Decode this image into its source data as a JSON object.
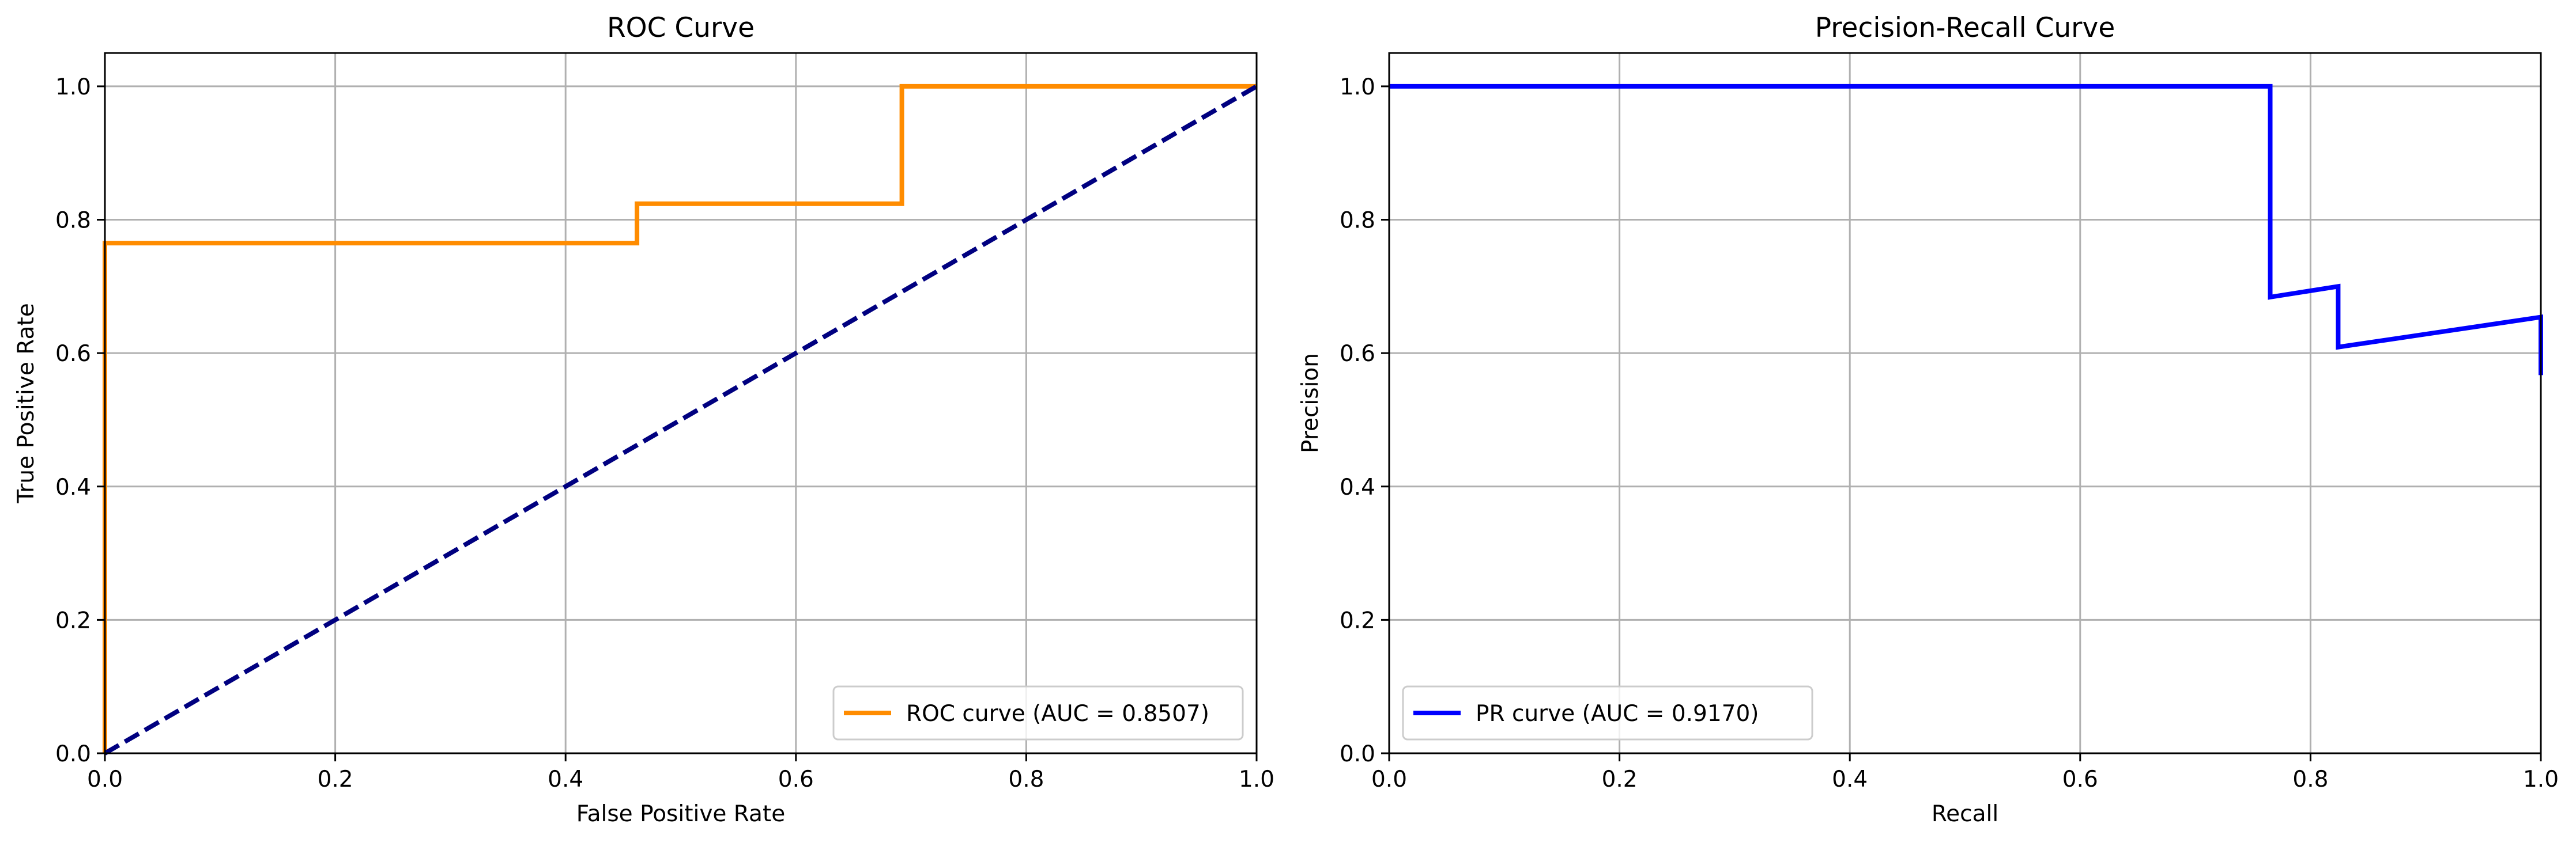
{
  "chart_data": [
    {
      "type": "line",
      "title": "ROC Curve",
      "xlabel": "False Positive Rate",
      "ylabel": "True Positive Rate",
      "xlim": [
        0.0,
        1.0
      ],
      "ylim": [
        0.0,
        1.05
      ],
      "xticks": [
        "0.0",
        "0.2",
        "0.4",
        "0.6",
        "0.8",
        "1.0"
      ],
      "yticks": [
        "0.0",
        "0.2",
        "0.4",
        "0.6",
        "0.8",
        "1.0"
      ],
      "grid": true,
      "legend_position": "lower-right",
      "series": [
        {
          "name": "ROC curve (AUC = 0.8507)",
          "color": "#ff8c00",
          "style": "solid",
          "x": [
            0.0,
            0.0,
            0.0,
            0.462,
            0.462,
            0.692,
            0.692,
            1.0
          ],
          "y": [
            0.0,
            0.765,
            0.765,
            0.765,
            0.824,
            0.824,
            1.0,
            1.0
          ]
        },
        {
          "name": "",
          "color": "#000080",
          "style": "dashed",
          "x": [
            0.0,
            1.0
          ],
          "y": [
            0.0,
            1.0
          ]
        }
      ]
    },
    {
      "type": "line",
      "title": "Precision-Recall Curve",
      "xlabel": "Recall",
      "ylabel": "Precision",
      "xlim": [
        0.0,
        1.0
      ],
      "ylim": [
        0.0,
        1.05
      ],
      "xticks": [
        "0.0",
        "0.2",
        "0.4",
        "0.6",
        "0.8",
        "1.0"
      ],
      "yticks": [
        "0.0",
        "0.2",
        "0.4",
        "0.6",
        "0.8",
        "1.0"
      ],
      "grid": true,
      "legend_position": "lower-left",
      "series": [
        {
          "name": "PR curve (AUC = 0.9170)",
          "color": "#0000ff",
          "style": "solid",
          "x": [
            0.0,
            0.765,
            0.765,
            0.824,
            0.824,
            1.0,
            1.0
          ],
          "y": [
            1.0,
            1.0,
            0.684,
            0.7,
            0.609,
            0.654,
            0.567
          ]
        }
      ]
    }
  ]
}
